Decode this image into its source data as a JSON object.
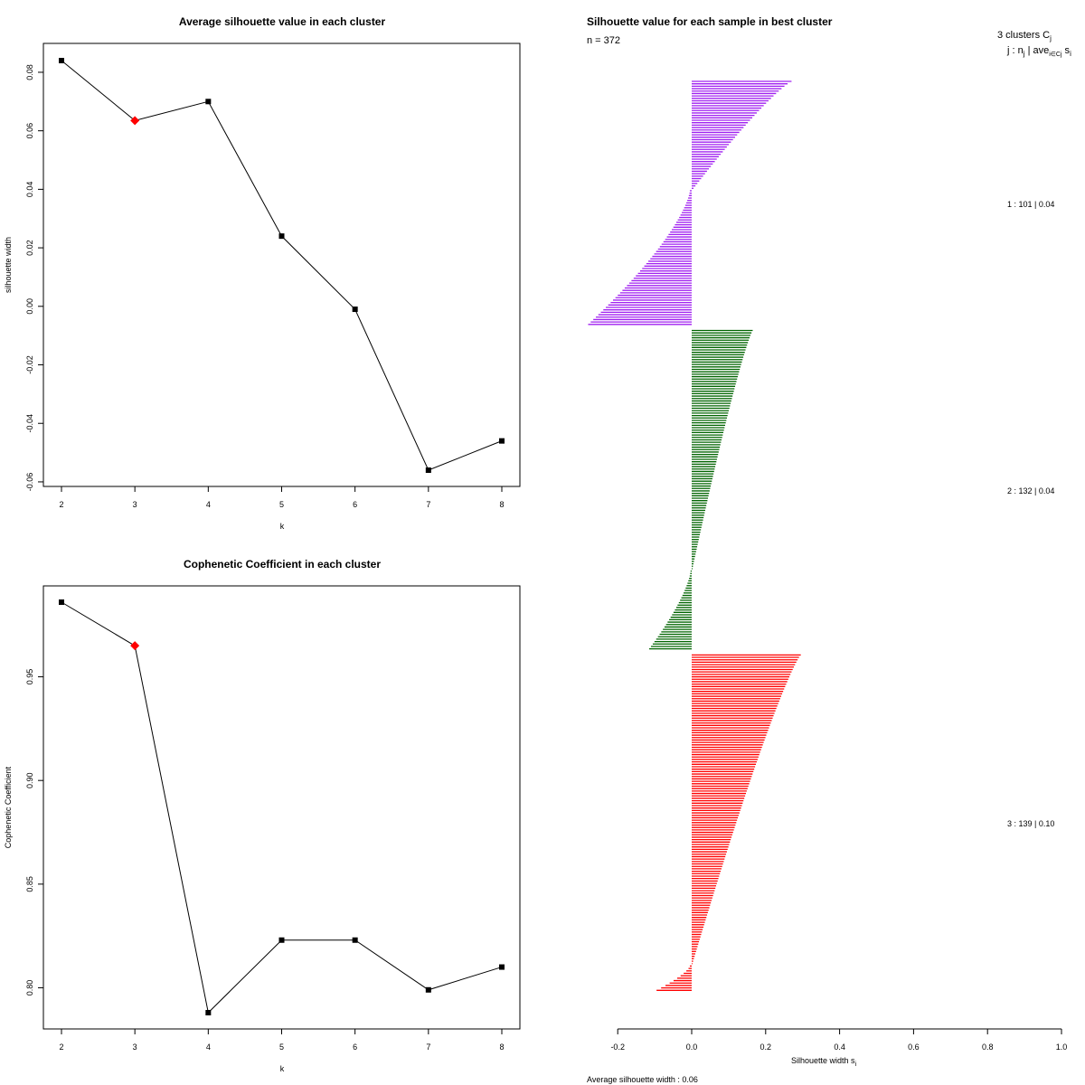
{
  "chart_data": [
    {
      "type": "line",
      "title": "Average silhouette value in each cluster",
      "xlabel": "k",
      "ylabel": "silhouette width",
      "x": [
        2,
        3,
        4,
        5,
        6,
        7,
        8
      ],
      "y": [
        0.084,
        0.0635,
        0.07,
        0.024,
        -0.001,
        -0.056,
        -0.046
      ],
      "highlight_k": 3,
      "xlim": [
        2,
        8
      ],
      "ylim": [
        -0.06,
        0.08
      ],
      "xticks": [
        "2",
        "3",
        "4",
        "5",
        "6",
        "7",
        "8"
      ],
      "yticks": [
        "-0.06",
        "-0.04",
        "-0.02",
        "0.00",
        "0.02",
        "0.04",
        "0.06",
        "0.08"
      ],
      "ytick_values": [
        -0.06,
        -0.04,
        -0.02,
        0.0,
        0.02,
        0.04,
        0.06,
        0.08
      ],
      "colors": {
        "line": "#000000",
        "point": "#000000",
        "highlight": "#ff0000"
      }
    },
    {
      "type": "line",
      "title": "Cophenetic Coefficient in each cluster",
      "xlabel": "k",
      "ylabel": "Cophenetic Coefficient",
      "x": [
        2,
        3,
        4,
        5,
        6,
        7,
        8
      ],
      "y": [
        0.986,
        0.965,
        0.788,
        0.823,
        0.823,
        0.799,
        0.81
      ],
      "highlight_k": 3,
      "xlim": [
        2,
        8
      ],
      "ylim": [
        0.78,
        0.99
      ],
      "xticks": [
        "2",
        "3",
        "4",
        "5",
        "6",
        "7",
        "8"
      ],
      "yticks": [
        "0.80",
        "0.85",
        "0.90",
        "0.95"
      ],
      "ytick_values": [
        0.8,
        0.85,
        0.9,
        0.95
      ],
      "colors": {
        "line": "#000000",
        "point": "#000000",
        "highlight": "#ff0000"
      }
    },
    {
      "type": "bar",
      "orientation": "horizontal",
      "title": "Silhouette value for each sample in best cluster",
      "n_label": "n = 372",
      "xlabel": "Silhouette width s",
      "xlabel_sub": "i",
      "average_label": "Average silhouette width :  0.06",
      "xlim": [
        -0.2,
        1.0
      ],
      "xticks": [
        "-0.2",
        "0.0",
        "0.2",
        "0.4",
        "0.6",
        "0.8",
        "1.0"
      ],
      "xtick_values": [
        -0.2,
        0.0,
        0.2,
        0.4,
        0.6,
        0.8,
        1.0
      ],
      "header": {
        "line1": "3  clusters  C",
        "line1_sub": "j",
        "line2": "j :  n",
        "line2_sub": "j",
        "line2_rest": " | ave",
        "line2_sub2": "i∈Cj",
        "line2_end": " s",
        "line2_sub3": "i"
      },
      "clusters": [
        {
          "id": 1,
          "label": "1 :  101  |  0.04",
          "n": 101,
          "avg": 0.04,
          "color": "#a020f0",
          "segments": [
            {
              "count": 45,
              "max": 0.27,
              "min": 0.005
            },
            {
              "count": 56,
              "max": -0.005,
              "min": -0.28
            }
          ]
        },
        {
          "id": 2,
          "label": "2 :  132  |  0.04",
          "n": 132,
          "avg": 0.04,
          "color": "#006400",
          "segments": [
            {
              "count": 99,
              "max": 0.165,
              "min": 0.002
            },
            {
              "count": 33,
              "max": -0.003,
              "min": -0.115
            }
          ]
        },
        {
          "id": 3,
          "label": "3 :  139  |  0.10",
          "n": 139,
          "avg": 0.1,
          "color": "#ff0000",
          "segments": [
            {
              "count": 128,
              "max": 0.295,
              "min": 0.002
            },
            {
              "count": 11,
              "max": -0.005,
              "min": -0.095
            }
          ]
        }
      ]
    }
  ]
}
